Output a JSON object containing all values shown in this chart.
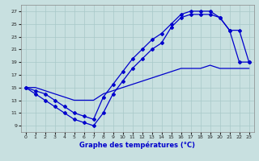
{
  "bg_color": "#c8e0e0",
  "line_color": "#0000cc",
  "grid_color": "#a8c8c8",
  "xlabel": "Graphe des températures (°C)",
  "xlim": [
    -0.5,
    23.5
  ],
  "ylim": [
    8.0,
    28.0
  ],
  "ytick_vals": [
    9,
    11,
    13,
    15,
    17,
    19,
    21,
    23,
    25,
    27
  ],
  "series1_y": [
    15,
    14,
    13,
    12,
    11,
    10,
    9.5,
    9,
    11,
    14,
    16,
    18,
    19.5,
    21,
    22,
    24.5,
    26,
    26.5,
    26.5,
    26.5,
    26,
    24,
    19,
    19
  ],
  "series2_y": [
    15,
    14.5,
    14,
    13,
    12,
    11,
    10.5,
    10,
    13.5,
    15.5,
    17.5,
    19.5,
    21,
    22.5,
    23.5,
    25,
    26.5,
    27,
    27,
    27,
    26,
    24,
    24,
    19
  ],
  "series3_y": [
    15,
    15,
    14.5,
    14,
    13.5,
    13,
    13,
    13,
    14,
    14.5,
    15,
    15.5,
    16,
    16.5,
    17,
    17.5,
    18,
    18,
    18,
    18.5,
    18,
    18,
    18,
    18
  ],
  "series1_has_markers": true,
  "series2_has_markers": true,
  "series3_has_markers": false,
  "marker": "D",
  "markersize": 2,
  "linewidth": 0.9,
  "xlabel_fontsize": 6,
  "tick_fontsize": 4.5,
  "spine_color": "#888888"
}
